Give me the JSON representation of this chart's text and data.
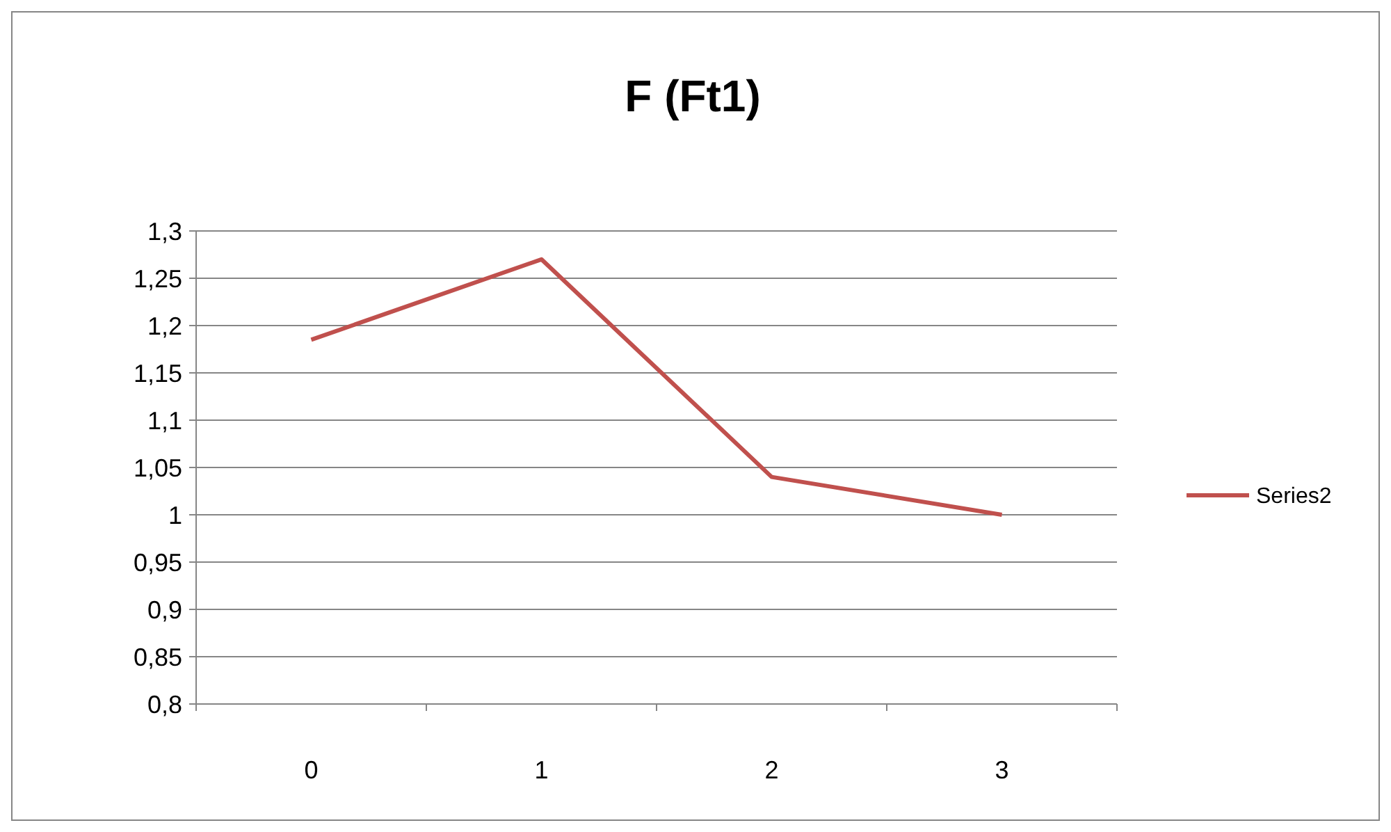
{
  "chart_data": {
    "type": "line",
    "title": "F (Ft1)",
    "categories": [
      "0",
      "1",
      "2",
      "3"
    ],
    "series": [
      {
        "name": "Series2",
        "color": "#c0504d",
        "values": [
          1.185,
          1.27,
          1.04,
          1.0
        ]
      }
    ],
    "ylim": [
      0.8,
      1.3
    ],
    "yticks": [
      {
        "value": 0.8,
        "label": "0,8"
      },
      {
        "value": 0.85,
        "label": "0,85"
      },
      {
        "value": 0.9,
        "label": "0,9"
      },
      {
        "value": 0.95,
        "label": "0,95"
      },
      {
        "value": 1,
        "label": "1"
      },
      {
        "value": 1.05,
        "label": "1,05"
      },
      {
        "value": 1.1,
        "label": "1,1"
      },
      {
        "value": 1.15,
        "label": "1,15"
      },
      {
        "value": 1.2,
        "label": "1,2"
      },
      {
        "value": 1.25,
        "label": "1,25"
      },
      {
        "value": 1.3,
        "label": "1,3"
      }
    ],
    "grid": "y",
    "legend": "right",
    "marker": "none",
    "line_style": "solid"
  }
}
